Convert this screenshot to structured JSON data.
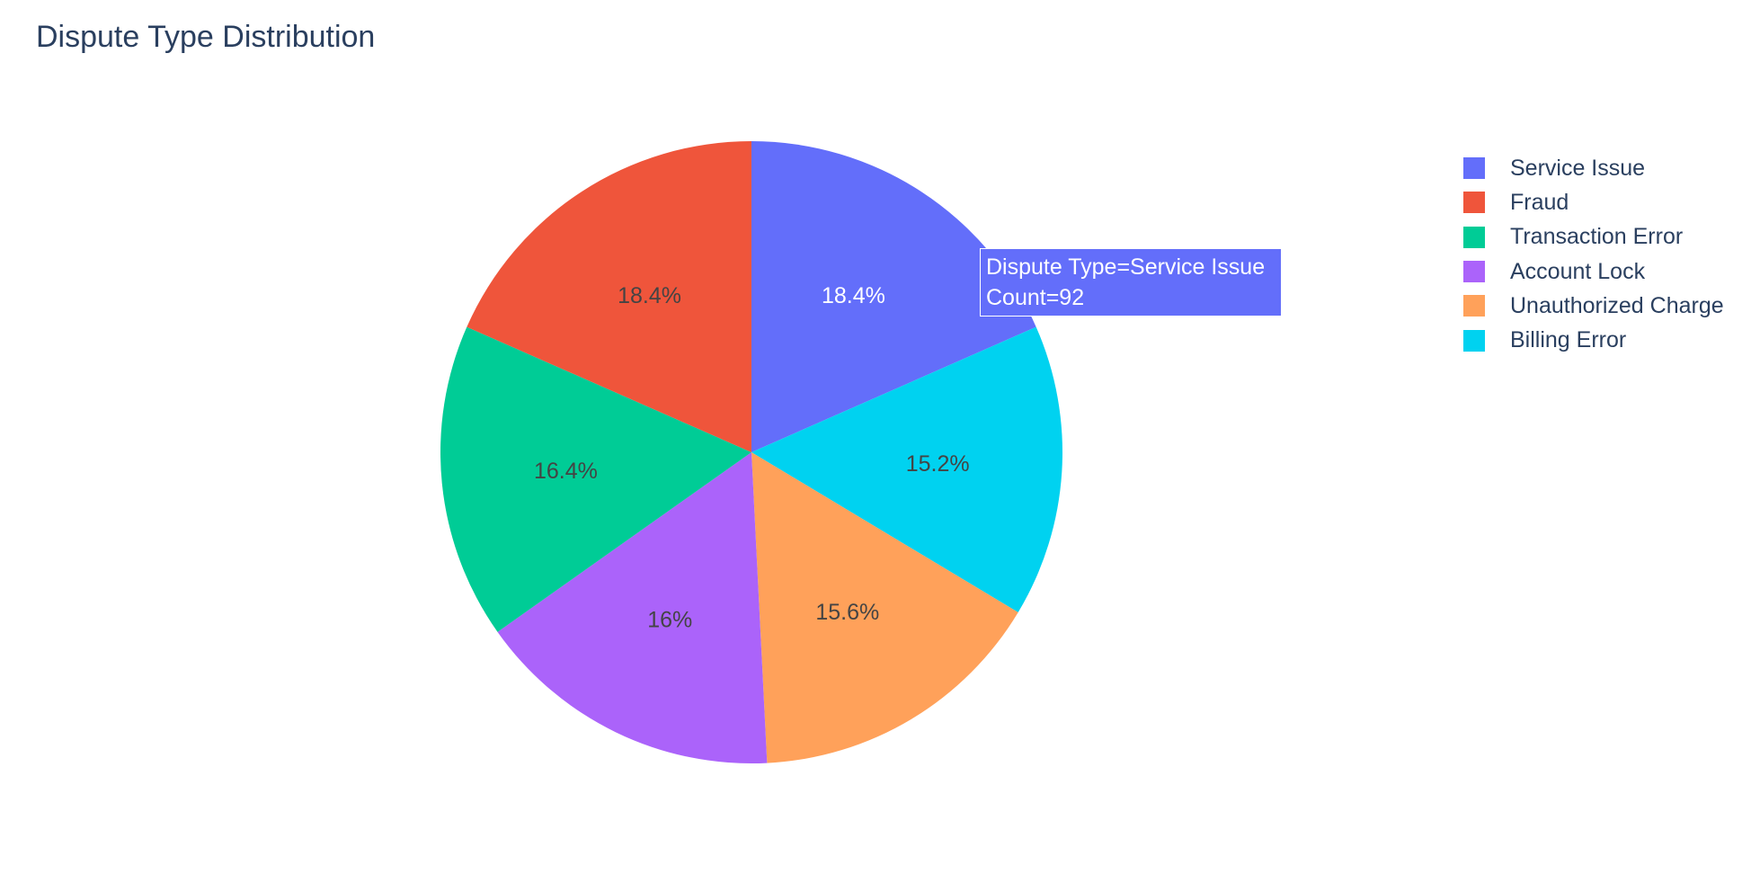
{
  "chart_data": {
    "type": "pie",
    "title": "Dispute Type Distribution",
    "slices": [
      {
        "label": "Service Issue",
        "percent": 18.4,
        "percent_label": "18.4%",
        "color": "#636efa",
        "text_color": "#ffffff"
      },
      {
        "label": "Billing Error",
        "percent": 15.2,
        "percent_label": "15.2%",
        "color": "#00d2f0",
        "text_color": "#444444"
      },
      {
        "label": "Unauthorized Charge",
        "percent": 15.6,
        "percent_label": "15.6%",
        "color": "#ffa15a",
        "text_color": "#444444"
      },
      {
        "label": "Account Lock",
        "percent": 16.0,
        "percent_label": "16%",
        "color": "#ab63fa",
        "text_color": "#444444"
      },
      {
        "label": "Transaction Error",
        "percent": 16.4,
        "percent_label": "16.4%",
        "color": "#00cc96",
        "text_color": "#444444"
      },
      {
        "label": "Fraud",
        "percent": 18.4,
        "percent_label": "18.4%",
        "color": "#ef553b",
        "text_color": "#444444"
      }
    ],
    "legend": [
      {
        "label": "Service Issue",
        "color": "#636efa"
      },
      {
        "label": "Fraud",
        "color": "#ef553b"
      },
      {
        "label": "Transaction Error",
        "color": "#00cc96"
      },
      {
        "label": "Account Lock",
        "color": "#ab63fa"
      },
      {
        "label": "Unauthorized Charge",
        "color": "#ffa15a"
      },
      {
        "label": "Billing Error",
        "color": "#00d2f0"
      }
    ],
    "legend_position": "top-right",
    "tooltip": {
      "line1": "Dispute Type=Service Issue",
      "line2": "Count=92",
      "color": "#636efa"
    }
  }
}
